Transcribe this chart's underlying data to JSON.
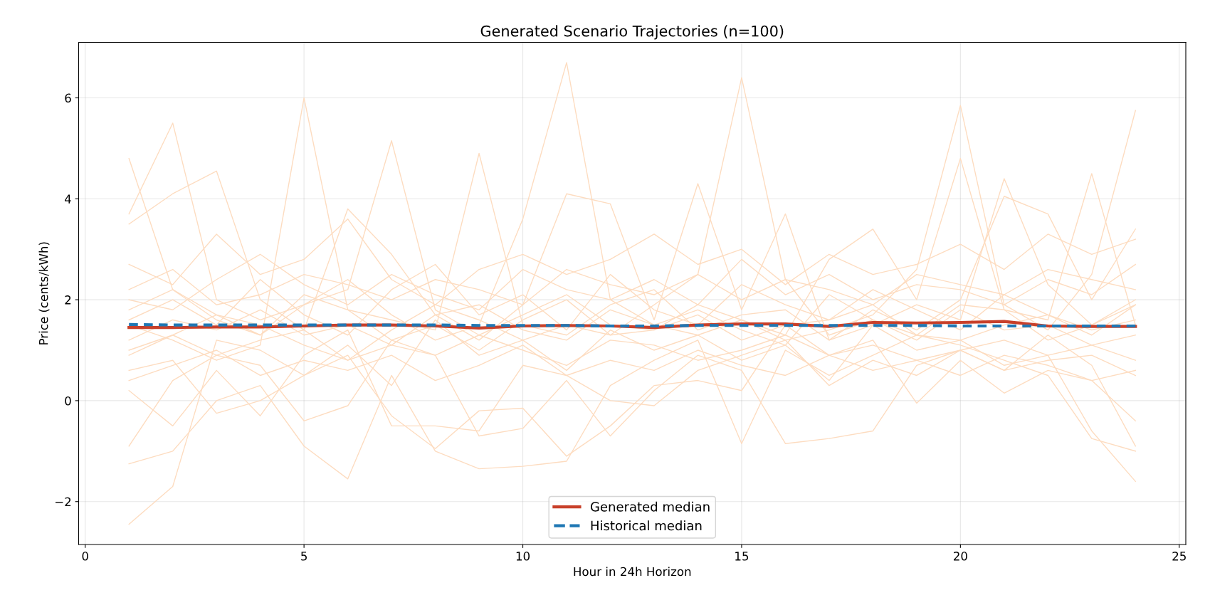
{
  "chart_data": {
    "type": "line",
    "title": "Generated Scenario Trajectories (n=100)",
    "xlabel": "Hour in 24h Horizon",
    "ylabel": "Price (cents/kWh)",
    "x": [
      1,
      2,
      3,
      4,
      5,
      6,
      7,
      8,
      9,
      10,
      11,
      12,
      13,
      14,
      15,
      16,
      17,
      18,
      19,
      20,
      21,
      22,
      23,
      24
    ],
    "xlim": [
      -0.15,
      25.15
    ],
    "xticks": [
      0,
      5,
      10,
      15,
      20,
      25
    ],
    "ylim": [
      -2.85,
      7.1
    ],
    "yticks": [
      -2,
      0,
      2,
      4,
      6
    ],
    "grid": true,
    "legend": "bottom",
    "line_style": "solid",
    "marker": "none",
    "series": [
      {
        "color": "#fddcc0",
        "values": [
          1.5,
          1.2,
          0.8,
          1.1,
          6.0,
          1.8,
          1.2,
          1.5,
          1.0,
          1.6,
          2.0,
          1.3,
          1.4,
          1.7,
          1.2,
          1.5,
          1.6,
          1.9,
          1.3,
          1.2,
          1.5,
          1.7,
          1.4,
          1.6
        ]
      },
      {
        "color": "#fddcc0",
        "values": [
          1.8,
          2.2,
          1.6,
          1.3,
          1.9,
          2.4,
          1.7,
          1.2,
          1.5,
          3.6,
          6.7,
          2.0,
          1.5,
          1.8,
          1.4,
          1.1,
          2.1,
          1.6,
          1.3,
          1.9,
          1.8,
          1.2,
          1.5,
          2.0
        ]
      },
      {
        "color": "#fddcc0",
        "values": [
          0.9,
          1.3,
          1.7,
          1.5,
          1.1,
          0.8,
          1.4,
          1.9,
          1.6,
          1.2,
          1.5,
          1.3,
          1.9,
          2.5,
          6.4,
          2.4,
          1.3,
          1.6,
          1.2,
          1.8,
          1.4,
          1.5,
          1.1,
          1.3
        ]
      },
      {
        "color": "#fddcc0",
        "values": [
          1.2,
          1.6,
          1.4,
          1.8,
          1.3,
          1.5,
          1.1,
          1.7,
          1.9,
          1.4,
          1.2,
          1.8,
          1.5,
          1.3,
          1.6,
          1.2,
          1.4,
          1.7,
          2.6,
          5.85,
          1.9,
          1.4,
          2.5,
          5.75
        ]
      },
      {
        "color": "#fddcc0",
        "values": [
          4.8,
          2.2,
          1.7,
          1.3,
          2.1,
          1.8,
          1.6,
          1.4,
          4.9,
          1.5,
          1.3,
          1.9,
          2.2,
          1.4,
          1.7,
          1.8,
          1.2,
          1.5,
          1.9,
          1.6,
          4.4,
          2.3,
          1.5,
          1.9
        ]
      },
      {
        "color": "#fddcc0",
        "values": [
          3.7,
          5.5,
          2.0,
          1.6,
          1.9,
          2.2,
          5.15,
          1.8,
          1.3,
          1.7,
          2.1,
          1.5,
          1.4,
          1.9,
          1.6,
          1.3,
          2.8,
          3.4,
          2.0,
          4.8,
          1.8,
          1.6,
          4.5,
          1.5
        ]
      },
      {
        "color": "#fddcc0",
        "values": [
          3.5,
          4.1,
          4.55,
          2.0,
          1.4,
          3.8,
          2.9,
          1.7,
          1.2,
          1.9,
          4.1,
          3.9,
          1.6,
          4.3,
          1.8,
          3.7,
          1.2,
          1.8,
          1.4,
          2.0,
          4.05,
          3.7,
          2.0,
          3.4
        ]
      },
      {
        "color": "#fddcc0",
        "values": [
          -2.45,
          -1.7,
          1.2,
          1.0,
          0.5,
          1.1,
          0.3,
          1.6,
          0.9,
          1.2,
          0.6,
          1.4,
          1.0,
          1.3,
          0.8,
          1.1,
          0.4,
          1.5,
          1.0,
          1.2,
          0.7,
          0.9,
          -0.6,
          -1.6
        ]
      },
      {
        "color": "#fddcc0",
        "values": [
          -1.25,
          -1.0,
          0.0,
          0.3,
          -0.9,
          -1.55,
          0.5,
          -1.0,
          -1.35,
          -1.3,
          -1.2,
          0.3,
          0.8,
          1.2,
          -0.85,
          1.0,
          0.5,
          0.9,
          1.3,
          1.1,
          0.8,
          0.5,
          -0.75,
          -1.0
        ]
      },
      {
        "color": "#fddcc0",
        "values": [
          -0.9,
          0.4,
          0.9,
          0.7,
          -0.4,
          -0.1,
          1.2,
          0.9,
          -0.7,
          -0.55,
          0.4,
          -0.7,
          0.2,
          0.9,
          0.6,
          -0.85,
          -0.75,
          -0.6,
          0.7,
          1.0,
          0.6,
          1.3,
          0.7,
          -0.9
        ]
      },
      {
        "color": "#fddcc0",
        "values": [
          0.6,
          0.8,
          -0.25,
          0.0,
          0.5,
          0.9,
          -0.3,
          -0.95,
          -0.2,
          -0.15,
          -1.1,
          -0.5,
          0.3,
          0.4,
          0.2,
          1.5,
          0.9,
          1.2,
          -0.05,
          0.8,
          0.15,
          0.6,
          0.4,
          -0.4
        ]
      },
      {
        "color": "#fddcc0",
        "values": [
          0.2,
          -0.5,
          0.6,
          -0.3,
          0.9,
          1.4,
          -0.5,
          -0.5,
          -0.6,
          0.7,
          0.5,
          0.0,
          -0.1,
          0.6,
          0.9,
          1.2,
          0.3,
          0.8,
          0.5,
          1.0,
          0.6,
          0.8,
          0.9,
          0.5
        ]
      },
      {
        "color": "#fddcc0",
        "values": [
          2.0,
          1.8,
          2.4,
          2.9,
          2.3,
          1.9,
          2.5,
          2.1,
          1.8,
          2.6,
          2.2,
          2.0,
          2.4,
          1.9,
          2.8,
          2.1,
          2.5,
          2.0,
          2.3,
          2.2,
          1.9,
          2.4,
          2.1,
          2.7
        ]
      },
      {
        "color": "#fddcc0",
        "values": [
          1.0,
          1.3,
          0.9,
          1.2,
          1.4,
          0.8,
          1.1,
          0.9,
          1.3,
          1.0,
          0.7,
          1.2,
          1.1,
          0.8,
          1.0,
          1.3,
          0.9,
          1.1,
          0.8,
          1.0,
          1.2,
          0.9,
          1.1,
          0.8
        ]
      },
      {
        "color": "#fddcc0",
        "values": [
          2.7,
          2.3,
          3.3,
          2.5,
          2.8,
          3.6,
          2.4,
          1.9,
          2.6,
          2.9,
          2.5,
          2.8,
          3.3,
          2.7,
          3.0,
          2.3,
          2.9,
          2.5,
          2.7,
          3.1,
          2.6,
          3.3,
          2.9,
          3.2
        ]
      },
      {
        "color": "#fddcc0",
        "values": [
          1.6,
          2.0,
          1.5,
          2.4,
          1.7,
          1.3,
          2.2,
          2.7,
          1.7,
          2.1,
          1.4,
          2.5,
          1.8,
          1.5,
          2.3,
          1.9,
          1.6,
          2.2,
          1.8,
          1.4,
          2.1,
          1.7,
          1.3,
          1.9
        ]
      },
      {
        "color": "#fddcc0",
        "values": [
          0.4,
          0.7,
          1.0,
          0.5,
          0.8,
          0.6,
          0.9,
          0.4,
          0.7,
          1.1,
          0.5,
          0.8,
          0.6,
          1.0,
          0.7,
          0.5,
          0.9,
          0.6,
          0.8,
          0.5,
          0.9,
          0.7,
          0.4,
          0.6
        ]
      },
      {
        "color": "#fddcc0",
        "values": [
          2.2,
          2.6,
          1.9,
          2.1,
          2.5,
          2.3,
          2.0,
          2.4,
          2.2,
          1.9,
          2.6,
          2.3,
          2.1,
          2.5,
          2.0,
          2.4,
          2.2,
          1.9,
          2.5,
          2.3,
          2.1,
          2.6,
          2.4,
          2.2
        ]
      },
      {
        "name": "Generated median",
        "color": "#c8402a",
        "values": [
          1.45,
          1.45,
          1.46,
          1.46,
          1.48,
          1.5,
          1.5,
          1.48,
          1.44,
          1.48,
          1.49,
          1.48,
          1.45,
          1.5,
          1.52,
          1.52,
          1.47,
          1.55,
          1.54,
          1.55,
          1.57,
          1.48,
          1.47,
          1.47
        ]
      },
      {
        "name": "Historical median",
        "color": "#1f77b4",
        "line_style": "dashed",
        "values": [
          1.51,
          1.5,
          1.5,
          1.5,
          1.5,
          1.5,
          1.5,
          1.5,
          1.49,
          1.49,
          1.49,
          1.48,
          1.48,
          1.49,
          1.49,
          1.49,
          1.49,
          1.49,
          1.49,
          1.48,
          1.48,
          1.48,
          1.48,
          1.48
        ]
      }
    ]
  }
}
